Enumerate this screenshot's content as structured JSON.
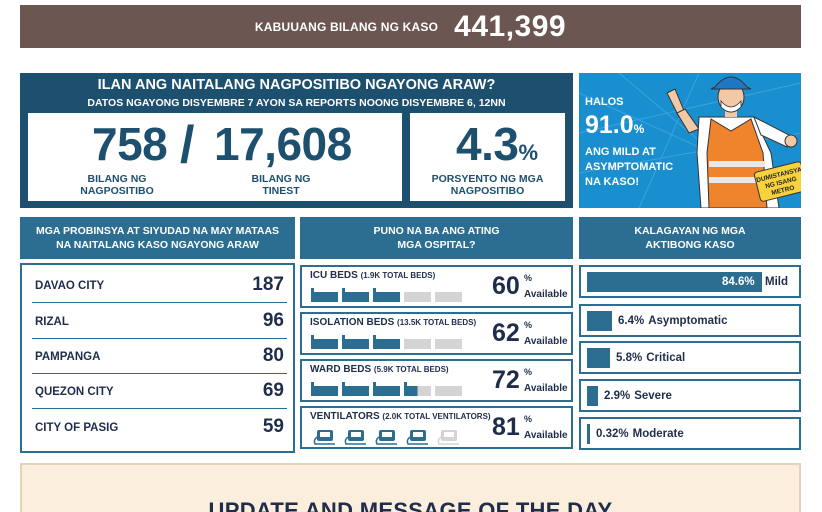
{
  "total": {
    "label": "KABUUANG BILANG NG KASO",
    "value": "441,399"
  },
  "positives": {
    "title": "ILAN ANG NAITALANG NAGPOSITIBO NGAYONG ARAW?",
    "subtitle": "DATOS NGAYONG DISYEMBRE  7 AYON SA REPORTS NOONG DISYEMBRE 6, 12NN",
    "positive_count": "758",
    "slash": "/",
    "tested_count": "17,608",
    "positive_caption_1": "BILANG NG",
    "positive_caption_2": "NAGPOSITIBO",
    "tested_caption_1": "BILANG NG",
    "tested_caption_2": "TINEST",
    "rate": "4.3",
    "rate_unit": "%",
    "rate_caption_1": "PORSYENTO NG MGA",
    "rate_caption_2": "NAGPOSITIBO"
  },
  "promo": {
    "halos": "HALOS",
    "percent": "91.0",
    "percent_unit": "%",
    "line1": "ANG MILD AT",
    "line2": "ASYMPTOMATIC",
    "line3": "NA KASO!",
    "sign_line1": "DUMISTANSYA",
    "sign_line2": "NG ISANG",
    "sign_line3": "METRO"
  },
  "provinces": {
    "heading_1": "MGA PROBINSYA AT SIYUDAD NA MAY MATAAS",
    "heading_2": "NA NAITALANG KASO NGAYONG ARAW",
    "rows": [
      {
        "name": "DAVAO CITY",
        "value": "187"
      },
      {
        "name": "RIZAL",
        "value": "96"
      },
      {
        "name": "PAMPANGA",
        "value": "80"
      },
      {
        "name": "QUEZON CITY",
        "value": "69"
      },
      {
        "name": "CITY OF PASIG",
        "value": "59"
      }
    ]
  },
  "hospitals": {
    "heading_1": "PUNO NA BA ANG ATING",
    "heading_2": "MGA OSPITAL?",
    "unit": "%",
    "available": "Available",
    "items": [
      {
        "label": "ICU BEDS",
        "detail": "(1.9K TOTAL BEDS)",
        "percent": "60",
        "filled_units": 3
      },
      {
        "label": "ISOLATION BEDS",
        "detail": "(13.5K TOTAL BEDS)",
        "percent": "62",
        "filled_units": 3
      },
      {
        "label": "WARD BEDS",
        "detail": "(5.9K TOTAL BEDS)",
        "percent": "72",
        "filled_units": 3.5
      },
      {
        "label": "VENTILATORS",
        "detail": "(2.0K TOTAL VENTILATORS)",
        "percent": "81",
        "filled_units": 4
      }
    ]
  },
  "active_cases": {
    "heading_1": "KALAGAYAN NG MGA",
    "heading_2": "AKTIBONG KASO",
    "items": [
      {
        "percent": "84.6%",
        "label": "Mild",
        "fraction": 0.846
      },
      {
        "percent": "6.4%",
        "label": "Asymptomatic",
        "fraction": 0.064
      },
      {
        "percent": "5.8%",
        "label": "Critical",
        "fraction": 0.058
      },
      {
        "percent": "2.9%",
        "label": "Severe",
        "fraction": 0.029
      },
      {
        "percent": "0.32%",
        "label": "Moderate",
        "fraction": 0.0032
      }
    ]
  },
  "update": {
    "title": "UPDATE AND MESSAGE OF THE DAY"
  },
  "colors": {
    "brown": "#6b5652",
    "navy": "#1d4f6e",
    "blue": "#2c6e91",
    "sky": "#1a8fd0",
    "bar_empty": "#d4d4d4",
    "cream": "#fbeedd"
  }
}
